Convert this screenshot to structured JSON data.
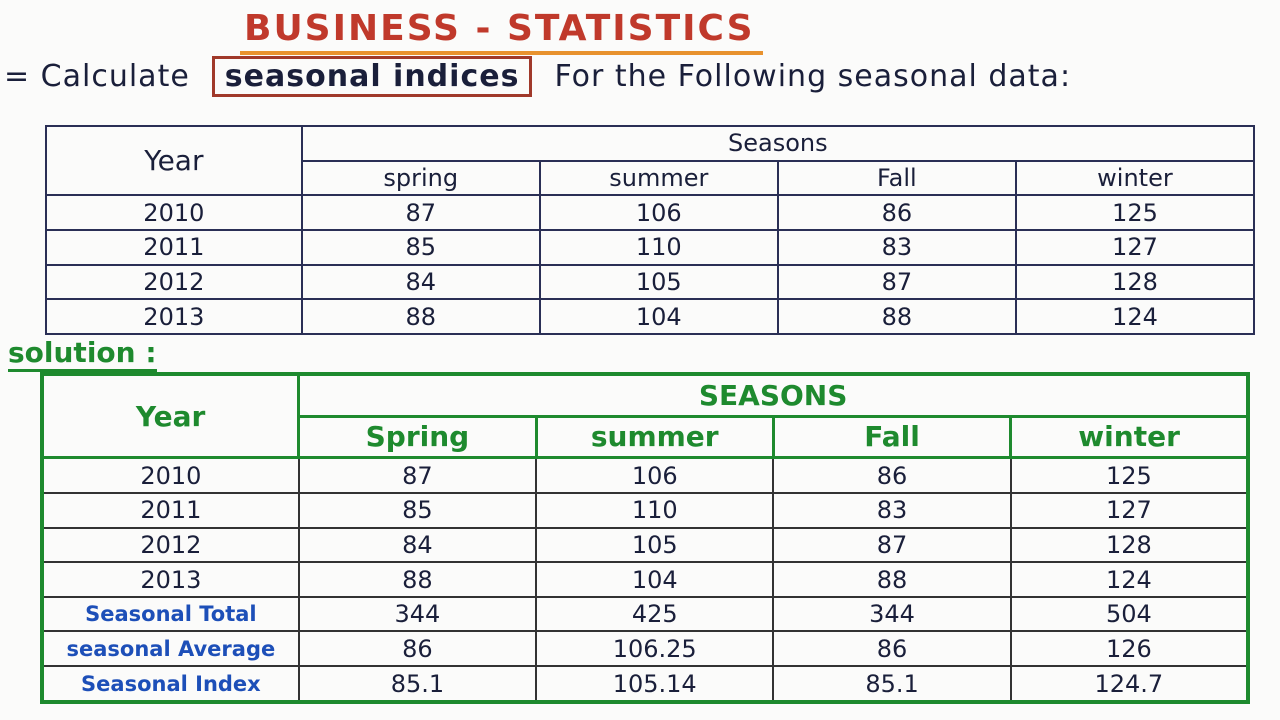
{
  "header": {
    "title": "BUSINESS - STATISTICS"
  },
  "prompt": {
    "lead": "= Calculate",
    "highlight": "seasonal indices",
    "rest": "For the Following seasonal data:"
  },
  "question_table": {
    "year_header": "Year",
    "group_header": "Seasons",
    "columns": [
      "spring",
      "summer",
      "Fall",
      "winter"
    ],
    "rows": [
      {
        "year": "2010",
        "values": [
          "87",
          "106",
          "86",
          "125"
        ]
      },
      {
        "year": "2011",
        "values": [
          "85",
          "110",
          "83",
          "127"
        ]
      },
      {
        "year": "2012",
        "values": [
          "84",
          "105",
          "87",
          "128"
        ]
      },
      {
        "year": "2013",
        "values": [
          "88",
          "104",
          "88",
          "124"
        ]
      }
    ]
  },
  "solution": {
    "label": "solution :",
    "table": {
      "year_header": "Year",
      "group_header": "SEASONS",
      "columns": [
        "Spring",
        "summer",
        "Fall",
        "winter"
      ],
      "rows": [
        {
          "year": "2010",
          "values": [
            "87",
            "106",
            "86",
            "125"
          ]
        },
        {
          "year": "2011",
          "values": [
            "85",
            "110",
            "83",
            "127"
          ]
        },
        {
          "year": "2012",
          "values": [
            "84",
            "105",
            "87",
            "128"
          ]
        },
        {
          "year": "2013",
          "values": [
            "88",
            "104",
            "88",
            "124"
          ]
        }
      ],
      "summary_rows": [
        {
          "label": "Seasonal Total",
          "values": [
            "344",
            "425",
            "344",
            "504"
          ]
        },
        {
          "label": "seasonal Average",
          "values": [
            "86",
            "106.25",
            "86",
            "126"
          ]
        },
        {
          "label": "Seasonal Index",
          "values": [
            "85.1",
            "105.14",
            "85.1",
            "124.7"
          ]
        }
      ]
    }
  }
}
